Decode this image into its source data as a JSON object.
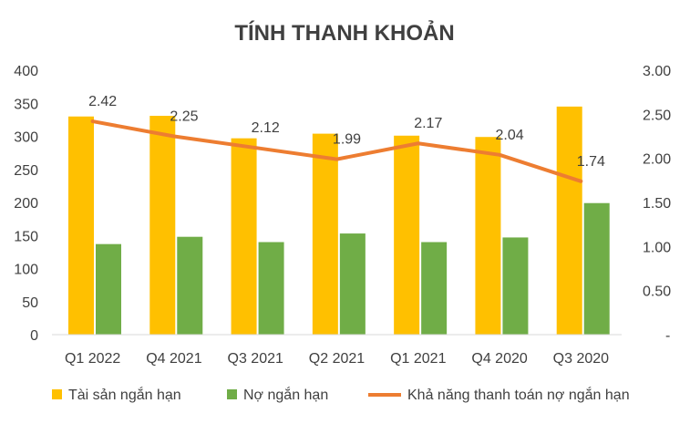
{
  "chart_data": {
    "type": "bar",
    "title": "TÍNH THANH KHOẢN",
    "categories": [
      "Q1 2022",
      "Q4 2021",
      "Q3 2021",
      "Q2 2021",
      "Q1 2021",
      "Q4 2020",
      "Q3 2020"
    ],
    "series": [
      {
        "name": "Tài sản ngắn hạn",
        "type": "bar",
        "axis": "left",
        "color": "#FFC000",
        "values": [
          330,
          331,
          297,
          304,
          301,
          299,
          345
        ]
      },
      {
        "name": "Nợ ngắn hạn",
        "type": "bar",
        "axis": "left",
        "color": "#70AD47",
        "values": [
          137,
          148,
          140,
          153,
          140,
          147,
          199
        ]
      },
      {
        "name": "Khả năng thanh toán nợ ngắn hạn",
        "type": "line",
        "axis": "right",
        "color": "#ED7D31",
        "values": [
          2.42,
          2.25,
          2.12,
          1.99,
          2.17,
          2.04,
          1.74
        ],
        "labels": [
          "2.42",
          "2.25",
          "2.12",
          "1.99",
          "2.17",
          "2.04",
          "1.74"
        ]
      }
    ],
    "y_left": {
      "min": 0,
      "max": 400,
      "step": 50,
      "tick_labels": [
        "0",
        "50",
        "100",
        "150",
        "200",
        "250",
        "300",
        "350",
        "400"
      ]
    },
    "y_right": {
      "min": 0,
      "max": 3,
      "step": 0.5,
      "tick_labels": [
        "-",
        "0.50",
        "1.00",
        "1.50",
        "2.00",
        "2.50",
        "3.00"
      ]
    },
    "grid": false,
    "legend_position": "bottom"
  }
}
